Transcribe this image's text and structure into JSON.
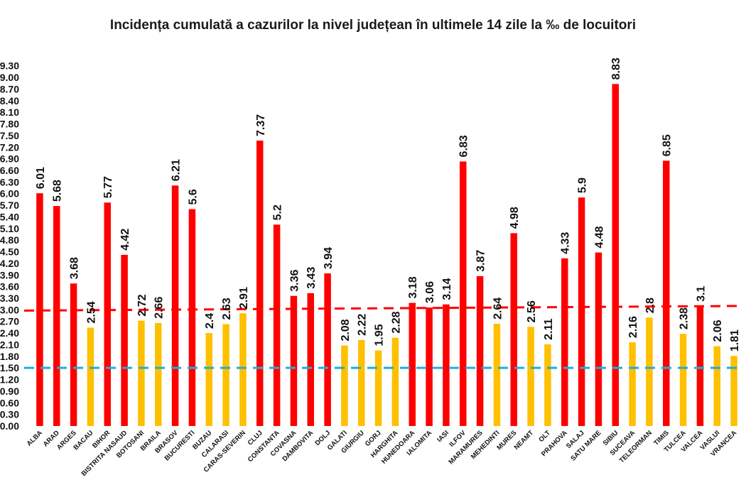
{
  "chart_data": {
    "type": "bar",
    "title": "Incidența cumulată a cazurilor la nivel județean în ultimele 14 zile la ‰ de locuitori",
    "xlabel": "",
    "ylabel": "",
    "ylim": [
      0,
      10.3
    ],
    "yticks": [
      "0.00",
      "0.30",
      "0.60",
      "0.90",
      "1.20",
      "1.50",
      "1.80",
      "2.10",
      "2.40",
      "2.70",
      "3.00",
      "3.30",
      "3.60",
      "3.90",
      "4.20",
      "4.50",
      "4.80",
      "5.10",
      "5.40",
      "5.70",
      "6.00",
      "6.30",
      "6.60",
      "6.90",
      "7.20",
      "7.50",
      "7.80",
      "8.10",
      "8.40",
      "8.70",
      "9.00",
      "9.30",
      "9.60",
      "9.90",
      "10.20"
    ],
    "ytick_labels_visible": [
      "0.00",
      "0.30",
      "0.60",
      "0.90",
      "1.20",
      "1.50",
      "1.80",
      "2.10",
      "2.40",
      "2.70",
      "3.00",
      "3.30",
      "3.60",
      "3.90",
      "4.20",
      "4.50",
      "4.80",
      "5.10",
      "5.40",
      "5.70",
      "6.00",
      "6.30",
      "6.60",
      "6.90",
      "7.20",
      "7.50",
      "7.80",
      "8.10",
      "8.40",
      "8.70",
      "9.00",
      "9.30"
    ],
    "categories": [
      "ALBA",
      "ARAD",
      "ARGES",
      "BACAU",
      "BIHOR",
      "BISTRITA NASAUD",
      "BOTOSANI",
      "BRAILA",
      "BRASOV",
      "BUCURESTI",
      "BUZAU",
      "CALARASI",
      "CARAS-SEVERIN",
      "CLUJ",
      "CONSTANTA",
      "COVASNA",
      "DAMBOVITA",
      "DOLJ",
      "GALATI",
      "GIURGIU",
      "GORJ",
      "HARGHITA",
      "HUNEDOARA",
      "IALOMITA",
      "IASI",
      "ILFOV",
      "MARAMURES",
      "MEHEDINTI",
      "MURES",
      "NEAMT",
      "OLT",
      "PRAHOVA",
      "SALAJ",
      "SATU MARE",
      "SIBIU",
      "SUCEAVA",
      "TELEORMAN",
      "TIMIS",
      "TULCEA",
      "VALCEA",
      "VASLUI",
      "VRANCEA"
    ],
    "values": [
      6.01,
      5.68,
      3.68,
      2.54,
      5.77,
      4.42,
      2.72,
      2.66,
      6.21,
      5.6,
      2.4,
      2.63,
      2.91,
      7.37,
      5.2,
      3.36,
      3.43,
      3.94,
      2.08,
      2.22,
      1.95,
      2.28,
      3.18,
      3.06,
      3.14,
      6.83,
      3.87,
      2.64,
      4.98,
      2.56,
      2.11,
      4.33,
      5.9,
      4.48,
      8.83,
      2.16,
      2.8,
      6.85,
      2.38,
      3.1,
      2.06,
      1.81
    ],
    "value_labels": [
      "6.01",
      "5.68",
      "3.68",
      "2.54",
      "5.77",
      "4.42",
      "2.72",
      "2.66",
      "6.21",
      "5.6",
      "2.4",
      "2.63",
      "2.91",
      "7.37",
      "5.2",
      "3.36",
      "3.43",
      "3.94",
      "2.08",
      "2.22",
      "1.95",
      "2.28",
      "3.18",
      "3.06",
      "3.14",
      "6.83",
      "3.87",
      "2.64",
      "4.98",
      "2.56",
      "2.11",
      "4.33",
      "5.9",
      "4.48",
      "8.83",
      "2.16",
      "2.8",
      "6.85",
      "2.38",
      "3.1",
      "2.06",
      "1.81"
    ],
    "bar_colors": [
      "red",
      "red",
      "red",
      "yellow",
      "red",
      "red",
      "yellow",
      "yellow",
      "red",
      "red",
      "yellow",
      "yellow",
      "yellow",
      "red",
      "red",
      "red",
      "red",
      "red",
      "yellow",
      "yellow",
      "yellow",
      "yellow",
      "red",
      "red",
      "red",
      "red",
      "red",
      "yellow",
      "red",
      "yellow",
      "yellow",
      "red",
      "red",
      "red",
      "red",
      "yellow",
      "yellow",
      "red",
      "yellow",
      "red",
      "yellow",
      "yellow"
    ],
    "reference_lines": [
      {
        "value": 3.0,
        "style": "dashed",
        "color": "#ff0000"
      },
      {
        "value": 1.5,
        "style": "dashed",
        "color": "#1ab0e0"
      }
    ],
    "grid": false,
    "legend": "none"
  },
  "colors": {
    "red": "#ff0000",
    "yellow": "#ffc000",
    "threshold_red": "#ff0000",
    "threshold_blue": "#1ab0e0"
  }
}
